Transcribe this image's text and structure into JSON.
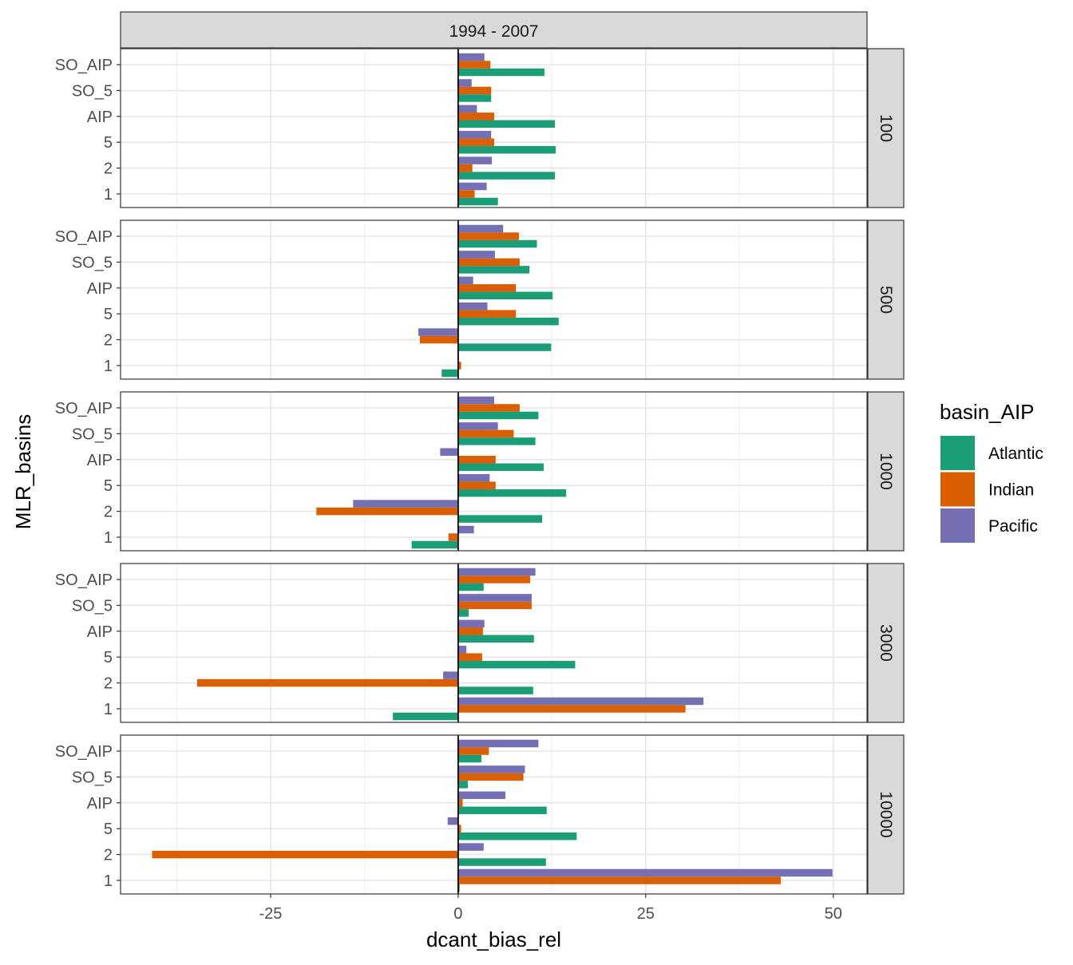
{
  "chart_data": {
    "type": "bar",
    "orientation": "horizontal",
    "facet_column": "1994 - 2007",
    "xlabel": "dcant_bias_rel",
    "ylabel": "MLR_basins",
    "xlim": [
      -45,
      54.5
    ],
    "x_ticks": [
      -25,
      0,
      25,
      50
    ],
    "x_tick_labels": [
      "-25",
      "0",
      "25",
      "50"
    ],
    "categories": [
      "SO_AIP",
      "SO_5",
      "AIP",
      "5",
      "2",
      "1"
    ],
    "legend": {
      "title": "basin_AIP",
      "position": "right",
      "entries": [
        {
          "name": "Atlantic",
          "color": "#1B9E77"
        },
        {
          "name": "Indian",
          "color": "#D95F02"
        },
        {
          "name": "Pacific",
          "color": "#7570B3"
        }
      ]
    },
    "grid": true,
    "panels": [
      {
        "label": "100",
        "series": [
          {
            "name": "Atlantic",
            "values": [
              11.5,
              4.4,
              12.9,
              13.0,
              12.9,
              5.3
            ]
          },
          {
            "name": "Indian",
            "values": [
              4.3,
              4.4,
              4.8,
              4.8,
              1.9,
              2.2
            ]
          },
          {
            "name": "Pacific",
            "values": [
              3.5,
              1.8,
              2.5,
              4.4,
              4.5,
              3.8
            ]
          }
        ]
      },
      {
        "label": "500",
        "series": [
          {
            "name": "Atlantic",
            "values": [
              10.5,
              9.5,
              12.6,
              13.4,
              12.4,
              -2.2
            ]
          },
          {
            "name": "Indian",
            "values": [
              8.1,
              8.2,
              7.7,
              7.7,
              -5.1,
              0.4
            ]
          },
          {
            "name": "Pacific",
            "values": [
              6.0,
              4.9,
              2.0,
              3.9,
              -5.3,
              0.0
            ]
          }
        ]
      },
      {
        "label": "1000",
        "series": [
          {
            "name": "Atlantic",
            "values": [
              10.7,
              10.3,
              11.4,
              14.4,
              11.2,
              -6.2
            ]
          },
          {
            "name": "Indian",
            "values": [
              8.2,
              7.4,
              5.0,
              5.0,
              -18.9,
              -1.3
            ]
          },
          {
            "name": "Pacific",
            "values": [
              4.8,
              5.3,
              -2.4,
              4.2,
              -14.0,
              2.1
            ]
          }
        ]
      },
      {
        "label": "3000",
        "series": [
          {
            "name": "Atlantic",
            "values": [
              3.4,
              1.4,
              10.1,
              15.6,
              10.0,
              -8.7
            ]
          },
          {
            "name": "Indian",
            "values": [
              9.6,
              9.8,
              3.3,
              3.2,
              -34.8,
              30.3
            ]
          },
          {
            "name": "Pacific",
            "values": [
              10.3,
              9.8,
              3.5,
              1.1,
              -2.0,
              32.7
            ]
          }
        ]
      },
      {
        "label": "10000",
        "series": [
          {
            "name": "Atlantic",
            "values": [
              3.1,
              1.3,
              11.8,
              15.8,
              11.7,
              0.2
            ]
          },
          {
            "name": "Indian",
            "values": [
              4.1,
              8.7,
              0.6,
              0.4,
              -40.8,
              43.0
            ]
          },
          {
            "name": "Pacific",
            "values": [
              10.7,
              8.9,
              6.3,
              -1.4,
              3.4,
              49.9
            ]
          }
        ]
      }
    ]
  }
}
